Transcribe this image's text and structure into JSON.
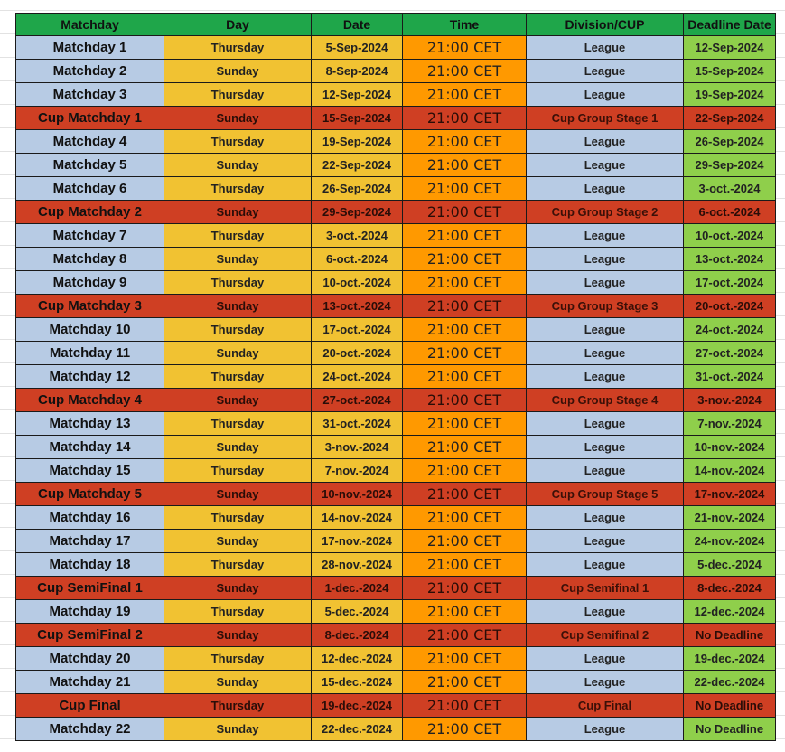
{
  "headers": [
    "Matchday",
    "Day",
    "Date",
    "Time",
    "Division/CUP",
    "Deadline Date"
  ],
  "rows": [
    {
      "type": "league",
      "matchday": "Matchday 1",
      "day": "Thursday",
      "date": "5-Sep-2024",
      "time": "21:00 CET",
      "division": "League",
      "deadline": "12-Sep-2024"
    },
    {
      "type": "league",
      "matchday": "Matchday 2",
      "day": "Sunday",
      "date": "8-Sep-2024",
      "time": "21:00 CET",
      "division": "League",
      "deadline": "15-Sep-2024"
    },
    {
      "type": "league",
      "matchday": "Matchday 3",
      "day": "Thursday",
      "date": "12-Sep-2024",
      "time": "21:00 CET",
      "division": "League",
      "deadline": "19-Sep-2024"
    },
    {
      "type": "cup",
      "matchday": "Cup Matchday 1",
      "day": "Sunday",
      "date": "15-Sep-2024",
      "time": "21:00 CET",
      "division": "Cup Group Stage 1",
      "deadline": "22-Sep-2024"
    },
    {
      "type": "league",
      "matchday": "Matchday 4",
      "day": "Thursday",
      "date": "19-Sep-2024",
      "time": "21:00 CET",
      "division": "League",
      "deadline": "26-Sep-2024"
    },
    {
      "type": "league",
      "matchday": "Matchday 5",
      "day": "Sunday",
      "date": "22-Sep-2024",
      "time": "21:00 CET",
      "division": "League",
      "deadline": "29-Sep-2024"
    },
    {
      "type": "league",
      "matchday": "Matchday 6",
      "day": "Thursday",
      "date": "26-Sep-2024",
      "time": "21:00 CET",
      "division": "League",
      "deadline": "3-oct.-2024"
    },
    {
      "type": "cup",
      "matchday": "Cup Matchday 2",
      "day": "Sunday",
      "date": "29-Sep-2024",
      "time": "21:00 CET",
      "division": "Cup Group Stage 2",
      "deadline": "6-oct.-2024"
    },
    {
      "type": "league",
      "matchday": "Matchday 7",
      "day": "Thursday",
      "date": "3-oct.-2024",
      "time": "21:00 CET",
      "division": "League",
      "deadline": "10-oct.-2024"
    },
    {
      "type": "league",
      "matchday": "Matchday 8",
      "day": "Sunday",
      "date": "6-oct.-2024",
      "time": "21:00 CET",
      "division": "League",
      "deadline": "13-oct.-2024"
    },
    {
      "type": "league",
      "matchday": "Matchday 9",
      "day": "Thursday",
      "date": "10-oct.-2024",
      "time": "21:00 CET",
      "division": "League",
      "deadline": "17-oct.-2024"
    },
    {
      "type": "cup",
      "matchday": "Cup Matchday 3",
      "day": "Sunday",
      "date": "13-oct.-2024",
      "time": "21:00 CET",
      "division": "Cup Group Stage 3",
      "deadline": "20-oct.-2024"
    },
    {
      "type": "league",
      "matchday": "Matchday 10",
      "day": "Thursday",
      "date": "17-oct.-2024",
      "time": "21:00 CET",
      "division": "League",
      "deadline": "24-oct.-2024"
    },
    {
      "type": "league",
      "matchday": "Matchday 11",
      "day": "Sunday",
      "date": "20-oct.-2024",
      "time": "21:00 CET",
      "division": "League",
      "deadline": "27-oct.-2024"
    },
    {
      "type": "league",
      "matchday": "Matchday 12",
      "day": "Thursday",
      "date": "24-oct.-2024",
      "time": "21:00 CET",
      "division": "League",
      "deadline": "31-oct.-2024"
    },
    {
      "type": "cup",
      "matchday": "Cup Matchday 4",
      "day": "Sunday",
      "date": "27-oct.-2024",
      "time": "21:00 CET",
      "division": "Cup Group Stage 4",
      "deadline": "3-nov.-2024"
    },
    {
      "type": "league",
      "matchday": "Matchday 13",
      "day": "Thursday",
      "date": "31-oct.-2024",
      "time": "21:00 CET",
      "division": "League",
      "deadline": "7-nov.-2024"
    },
    {
      "type": "league",
      "matchday": "Matchday 14",
      "day": "Sunday",
      "date": "3-nov.-2024",
      "time": "21:00 CET",
      "division": "League",
      "deadline": "10-nov.-2024"
    },
    {
      "type": "league",
      "matchday": "Matchday 15",
      "day": "Thursday",
      "date": "7-nov.-2024",
      "time": "21:00 CET",
      "division": "League",
      "deadline": "14-nov.-2024"
    },
    {
      "type": "cup",
      "matchday": "Cup Matchday 5",
      "day": "Sunday",
      "date": "10-nov.-2024",
      "time": "21:00 CET",
      "division": "Cup Group Stage 5",
      "deadline": "17-nov.-2024"
    },
    {
      "type": "league",
      "matchday": "Matchday 16",
      "day": "Thursday",
      "date": "14-nov.-2024",
      "time": "21:00 CET",
      "division": "League",
      "deadline": "21-nov.-2024"
    },
    {
      "type": "league",
      "matchday": "Matchday 17",
      "day": "Sunday",
      "date": "17-nov.-2024",
      "time": "21:00 CET",
      "division": "League",
      "deadline": "24-nov.-2024"
    },
    {
      "type": "league",
      "matchday": "Matchday 18",
      "day": "Thursday",
      "date": "28-nov.-2024",
      "time": "21:00 CET",
      "division": "League",
      "deadline": "5-dec.-2024"
    },
    {
      "type": "cup",
      "matchday": "Cup SemiFinal 1",
      "day": "Sunday",
      "date": "1-dec.-2024",
      "time": "21:00 CET",
      "division": "Cup Semifinal 1",
      "deadline": "8-dec.-2024"
    },
    {
      "type": "league",
      "matchday": "Matchday 19",
      "day": "Thursday",
      "date": "5-dec.-2024",
      "time": "21:00 CET",
      "division": "League",
      "deadline": "12-dec.-2024"
    },
    {
      "type": "cup",
      "matchday": "Cup SemiFinal 2",
      "day": "Sunday",
      "date": "8-dec.-2024",
      "time": "21:00 CET",
      "division": "Cup Semifinal 2",
      "deadline": "No Deadline"
    },
    {
      "type": "league",
      "matchday": "Matchday 20",
      "day": "Thursday",
      "date": "12-dec.-2024",
      "time": "21:00 CET",
      "division": "League",
      "deadline": "19-dec.-2024"
    },
    {
      "type": "league",
      "matchday": "Matchday 21",
      "day": "Sunday",
      "date": "15-dec.-2024",
      "time": "21:00 CET",
      "division": "League",
      "deadline": "22-dec.-2024"
    },
    {
      "type": "cup",
      "matchday": "Cup Final",
      "day": "Thursday",
      "date": "19-dec.-2024",
      "time": "21:00 CET",
      "division": "Cup Final",
      "deadline": "No Deadline"
    },
    {
      "type": "league",
      "matchday": "Matchday 22",
      "day": "Sunday",
      "date": "22-dec.-2024",
      "time": "21:00 CET",
      "division": "League",
      "deadline": "No Deadline"
    }
  ]
}
